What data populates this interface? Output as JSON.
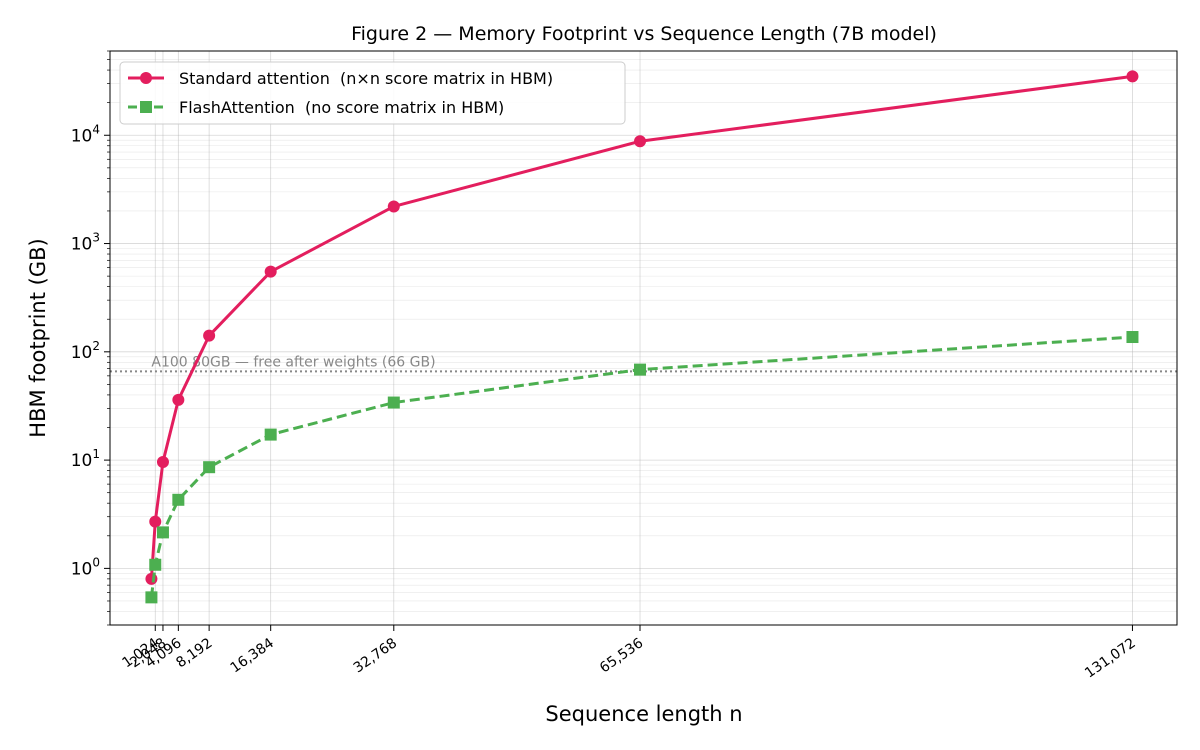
{
  "chart_data": {
    "type": "line",
    "title": "Figure 2 — Memory Footprint vs Sequence Length (7B model)",
    "xlabel": "Sequence length  n",
    "ylabel": "HBM footprint  (GB)",
    "xscale": "linear",
    "yscale": "log",
    "xlim": [
      -5000,
      137000
    ],
    "ylim": [
      0.3,
      60000
    ],
    "grid": true,
    "legend_position": "upper-left",
    "x_ticks": [
      1024,
      2048,
      4096,
      8192,
      16384,
      32768,
      65536,
      131072
    ],
    "x_tick_labels": [
      "1,024",
      "2,048",
      "4,096",
      "8,192",
      "16,384",
      "32,768",
      "65,536",
      "131,072"
    ],
    "y_ticks": [
      1,
      10,
      100,
      1000,
      10000
    ],
    "y_tick_mantissa": "10",
    "y_tick_exponents": [
      "0",
      "1",
      "2",
      "3",
      "4"
    ],
    "x": [
      512,
      1024,
      2048,
      4096,
      8192,
      16384,
      32768,
      65536,
      131072
    ],
    "series": [
      {
        "name": "Standard attention  (n×n score matrix in HBM)",
        "color": "#e31e5e",
        "marker": "circle",
        "line_style": "solid",
        "values": [
          0.8,
          2.7,
          9.6,
          36,
          141,
          550,
          2200,
          8800,
          35000
        ]
      },
      {
        "name": "FlashAttention  (no score matrix in HBM)",
        "color": "#4caf50",
        "marker": "square",
        "line_style": "dashed",
        "values": [
          0.54,
          1.08,
          2.15,
          4.3,
          8.6,
          17.2,
          34,
          68.5,
          137
        ]
      }
    ],
    "reference_line": {
      "y": 66,
      "label": "A100 80GB — free after weights (66 GB)",
      "color": "#888888"
    }
  }
}
